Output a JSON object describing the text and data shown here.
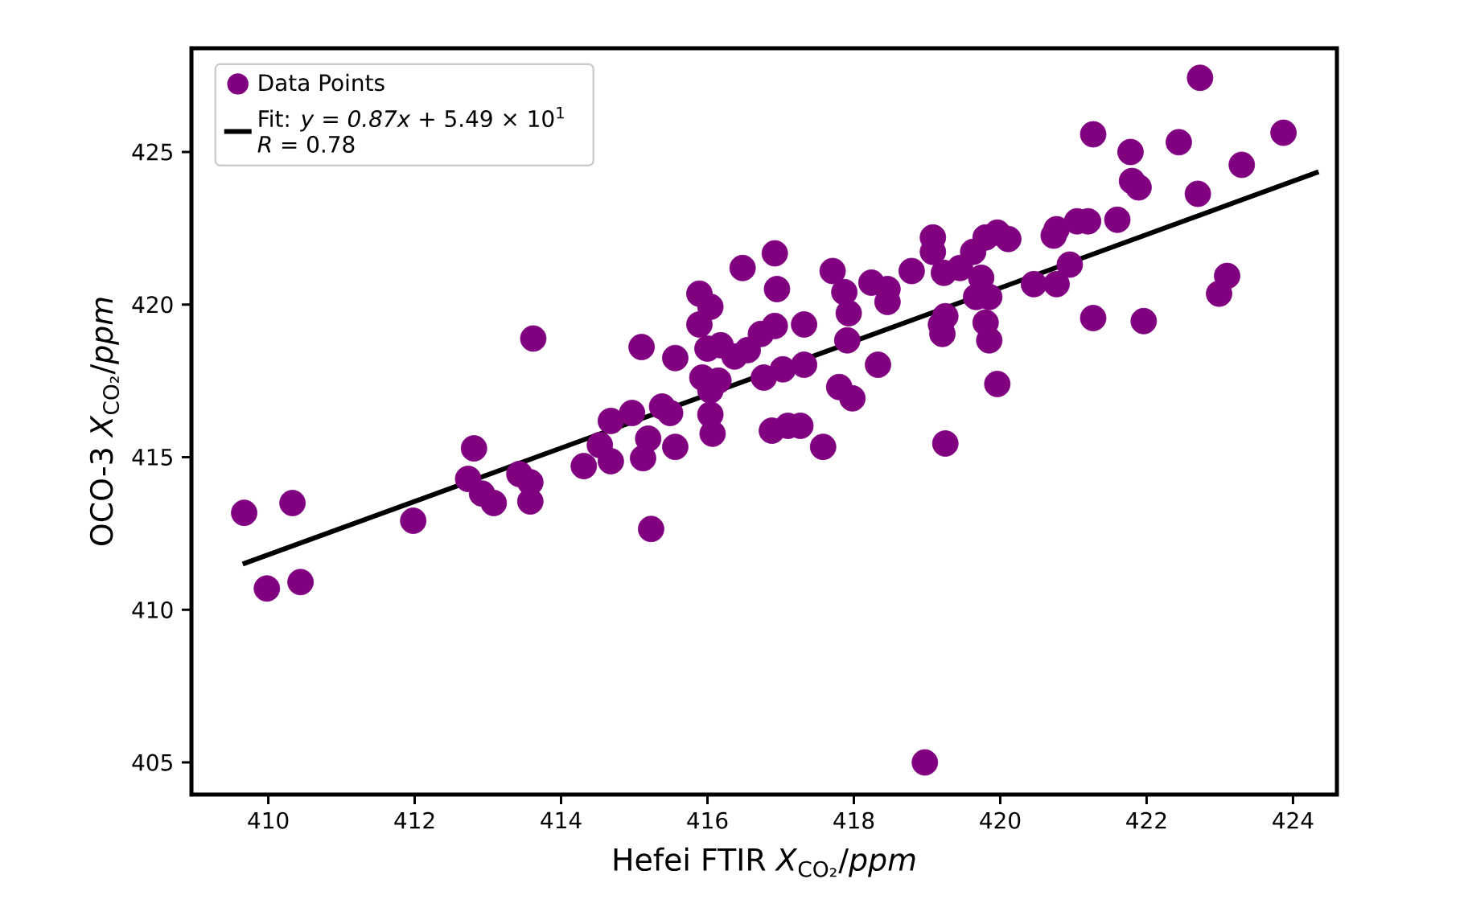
{
  "chart_data": {
    "type": "scatter",
    "xlabel": "Hefei FTIR *X*$_{CO₂}$/*ppm*",
    "ylabel": "OCO-3 *X*$_{CO₂}$/*ppm*",
    "xlim": [
      408.95,
      424.6
    ],
    "ylim": [
      403.95,
      428.4
    ],
    "xticks": [
      410,
      412,
      414,
      416,
      418,
      420,
      422,
      424
    ],
    "yticks": [
      405,
      410,
      415,
      420,
      425
    ],
    "legend": "top left",
    "marker": "circle",
    "series": [
      {
        "name": "Data Points",
        "type": "scatter",
        "color": "#800080",
        "x": [
          409.67,
          410.33,
          409.98,
          410.44,
          411.98,
          412.81,
          412.73,
          412.92,
          413.08,
          413.43,
          413.58,
          413.58,
          413.62,
          414.31,
          414.53,
          414.68,
          414.68,
          414.97,
          415.12,
          415.19,
          415.23,
          415.38,
          415.49,
          415.56,
          415.1,
          415.56,
          415.89,
          416.04,
          415.89,
          416.0,
          416.18,
          416.37,
          416.55,
          416.73,
          416.92,
          416.77,
          417.03,
          415.93,
          416.15,
          416.04,
          416.04,
          416.07,
          416.88,
          417.1,
          417.27,
          417.58,
          416.92,
          416.48,
          416.95,
          422.73,
          423.87,
          421.27,
          421.78,
          422.44,
          421.8,
          421.89,
          423.3,
          422.7,
          421.6,
          421.05,
          421.2,
          420.77,
          420.73,
          420.95,
          420.46,
          420.77,
          419.96,
          420.11,
          419.8,
          419.63,
          419.08,
          419.08,
          418.79,
          419.45,
          419.23,
          419.74,
          419.85,
          419.67,
          419.8,
          419.85,
          419.96,
          419.25,
          419.19,
          419.21,
          421.27,
          421.96,
          423.1,
          422.99,
          418.24,
          418.46,
          418.46,
          417.71,
          417.87,
          417.93,
          417.32,
          417.32,
          417.91,
          418.33,
          417.8,
          417.98,
          418.97,
          419.25
        ],
        "values": [
          413.18,
          413.5,
          410.7,
          410.91,
          412.92,
          415.29,
          414.29,
          413.81,
          413.5,
          414.45,
          414.18,
          413.55,
          418.89,
          414.71,
          415.4,
          416.19,
          414.87,
          416.45,
          414.97,
          415.61,
          412.65,
          416.66,
          416.45,
          415.34,
          418.61,
          418.25,
          420.36,
          419.93,
          419.35,
          418.56,
          418.67,
          418.3,
          418.51,
          419.04,
          419.3,
          417.61,
          417.88,
          417.61,
          417.51,
          417.19,
          416.4,
          415.77,
          415.87,
          416.03,
          416.03,
          415.34,
          421.68,
          421.2,
          420.51,
          427.43,
          425.63,
          425.58,
          425.0,
          425.32,
          424.05,
          423.84,
          424.58,
          423.63,
          422.78,
          422.73,
          422.73,
          422.47,
          422.26,
          421.31,
          420.67,
          420.67,
          422.36,
          422.15,
          422.2,
          421.73,
          422.2,
          421.73,
          421.1,
          421.2,
          421.04,
          420.88,
          420.25,
          420.25,
          419.41,
          418.83,
          417.4,
          419.62,
          419.35,
          419.04,
          419.56,
          419.46,
          420.94,
          420.36,
          420.72,
          420.51,
          420.09,
          421.1,
          420.41,
          419.72,
          419.35,
          418.03,
          418.83,
          418.03,
          417.3,
          416.93,
          405.0,
          415.45
        ]
      },
      {
        "name": "Fit: *y* = *0.87x* + 5.49 × 10$^{1}$ *R* = 0.78",
        "type": "line",
        "color": "#000000",
        "line_style": "solid",
        "marker": "none",
        "x": [
          409.65,
          424.35
        ],
        "values": [
          411.5,
          424.35
        ]
      }
    ]
  }
}
